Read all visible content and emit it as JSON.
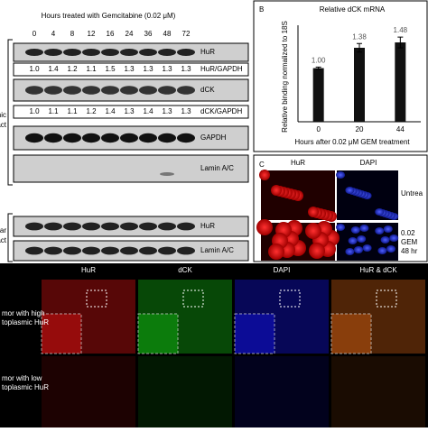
{
  "panel_a": {
    "title": "Hours treated with Gemcitabine (0.02 μM)",
    "timepoints": [
      "0",
      "4",
      "8",
      "12",
      "16",
      "24",
      "36",
      "48",
      "72"
    ],
    "cytoplasmic_label": [
      "plasmic",
      "extract"
    ],
    "nuclear_label": [
      "uclear",
      "extract"
    ],
    "blots": [
      {
        "label": "HuR",
        "ratios": [
          "1.0",
          "1.4",
          "1.2",
          "1.1",
          "1.5",
          "1.3",
          "1.3",
          "1.3",
          "1.3"
        ],
        "ratio_label": "HuR/GAPDH"
      },
      {
        "label": "dCK",
        "ratios": [
          "1.0",
          "1.1",
          "1.1",
          "1.2",
          "1.4",
          "1.3",
          "1.4",
          "1.3",
          "1.3"
        ],
        "ratio_label": "dCK/GAPDH"
      },
      {
        "label": "GAPDH"
      },
      {
        "label": "Lamin A/C"
      }
    ],
    "nuclear_blots": [
      {
        "label": "HuR"
      },
      {
        "label": "Lamin A/C"
      }
    ]
  },
  "panel_b": {
    "letter": "B",
    "title": "Relative dCK mRNA",
    "y_label": "Relative binding normalized to 18S",
    "x_label": "Hours after 0.02 μM GEM treatment",
    "categories": [
      "0",
      "20",
      "44"
    ],
    "values": [
      1,
      1.38,
      1.48
    ],
    "value_labels": [
      "1.00",
      "1.38",
      "1.48"
    ],
    "errors": [
      0.02,
      0.08,
      0.1
    ],
    "ylim": [
      0,
      1.8
    ],
    "color": "#111111"
  },
  "panel_c": {
    "letter": "C",
    "columns": [
      "HuR",
      "DAPI"
    ],
    "rows": [
      [
        "Untrea"
      ],
      [
        "0.02",
        "GEM",
        "48 hr"
      ]
    ]
  },
  "panel_d": {
    "columns": [
      "HuR",
      "dCK",
      "DAPI",
      "HuR & dCK"
    ],
    "rows": [
      [
        "mor with high",
        "toplasmic HuR"
      ],
      [
        "mor with low",
        "toplasmic HuR"
      ]
    ]
  }
}
